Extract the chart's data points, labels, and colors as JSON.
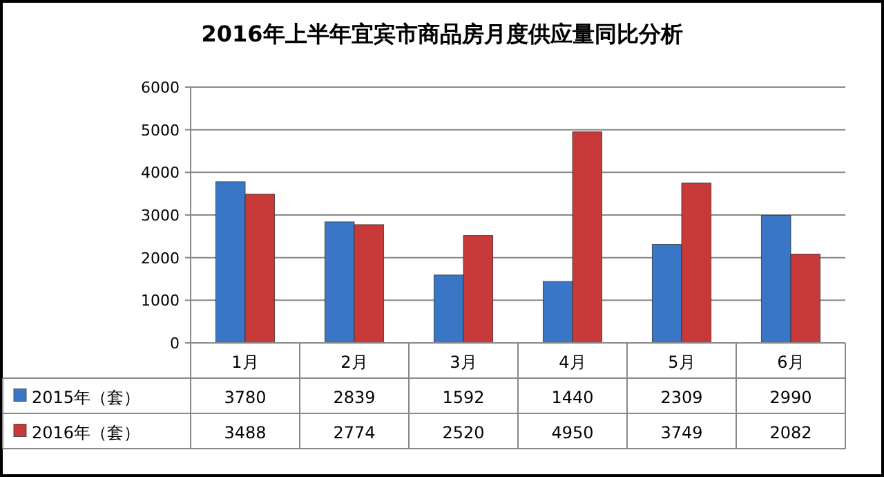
{
  "chart_data": {
    "type": "bar",
    "title": "2016年上半年宜宾市商品房月度供应量同比分析",
    "categories": [
      "1月",
      "2月",
      "3月",
      "4月",
      "5月",
      "6月"
    ],
    "series": [
      {
        "name": "2015年（套）",
        "color": "#3a76c6",
        "values": [
          3780,
          2839,
          1592,
          1440,
          2309,
          2990
        ]
      },
      {
        "name": "2016年（套）",
        "color": "#c83a3a",
        "values": [
          3488,
          2774,
          2520,
          4950,
          3749,
          2082
        ]
      }
    ],
    "ylim": [
      0,
      6000
    ],
    "yticks": [
      0,
      1000,
      2000,
      3000,
      4000,
      5000,
      6000
    ],
    "grid": "y",
    "data_labels": true,
    "legend": "bottom left"
  }
}
